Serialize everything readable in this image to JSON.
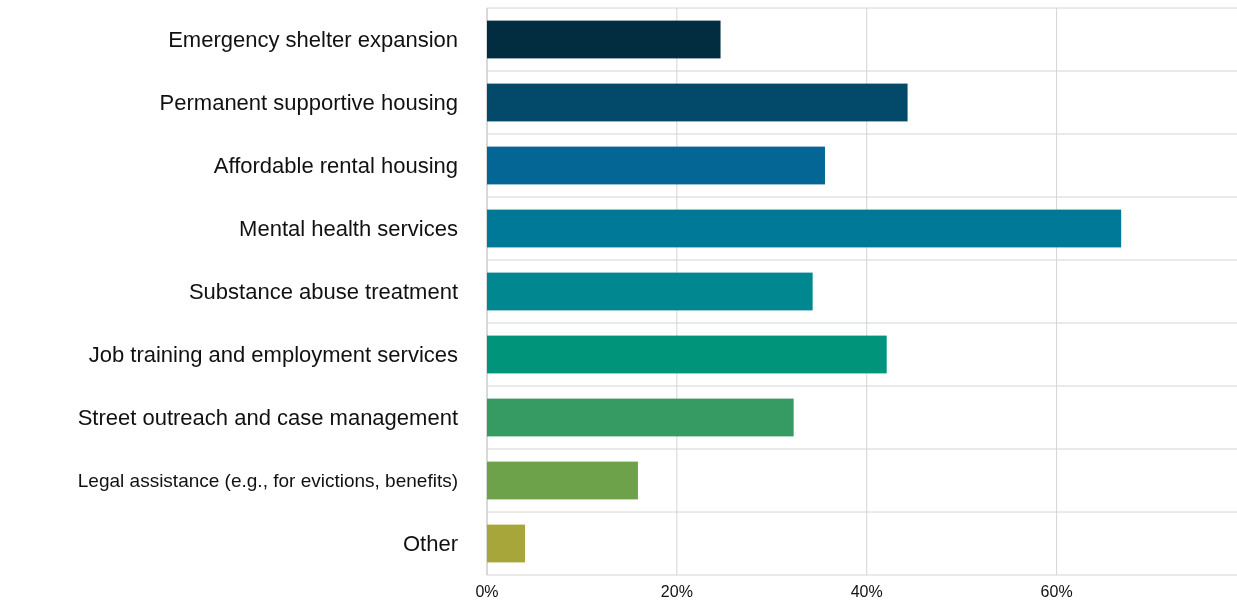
{
  "chart_data": {
    "type": "bar",
    "orientation": "horizontal",
    "categories": [
      "Emergency shelter expansion",
      "Permanent supportive housing",
      "Affordable rental housing",
      "Mental health services",
      "Substance abuse treatment",
      "Job training and employment services",
      "Street outreach and case management",
      "Legal assistance (e.g., for evictions, benefits)",
      "Other"
    ],
    "values": [
      24.6,
      44.3,
      35.6,
      66.8,
      34.3,
      42.1,
      32.3,
      15.9,
      4.0
    ],
    "colors": [
      "#022d40",
      "#03496a",
      "#036694",
      "#007898",
      "#00878f",
      "#00957a",
      "#359b62",
      "#6ea24a",
      "#a7a63a"
    ],
    "xlim": [
      0,
      79
    ],
    "xticks": [
      {
        "value": 0,
        "label": "0%"
      },
      {
        "value": 20,
        "label": "20%"
      },
      {
        "value": 40,
        "label": "40%"
      },
      {
        "value": 60,
        "label": "60%"
      }
    ],
    "grid": true
  }
}
